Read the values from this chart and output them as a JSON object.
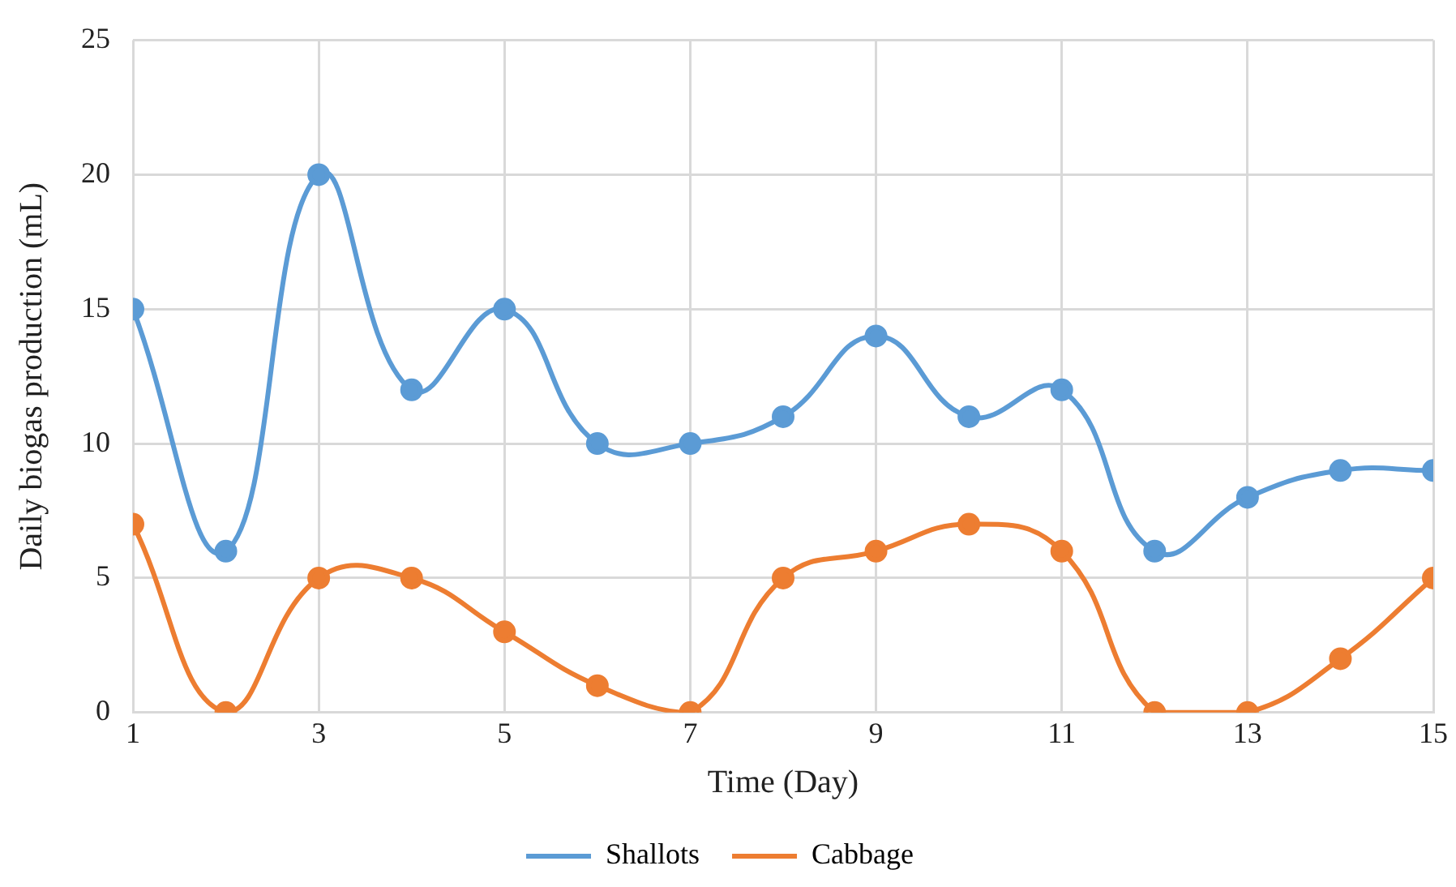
{
  "chart_data": {
    "type": "line",
    "xlabel": "Time (Day)",
    "ylabel": "Daily biogas production (mL)",
    "x": [
      1,
      2,
      3,
      4,
      5,
      6,
      7,
      8,
      9,
      10,
      11,
      12,
      13,
      14,
      15
    ],
    "series": [
      {
        "name": "Shallots",
        "color": "#5b9bd5",
        "values": [
          15,
          6,
          20,
          12,
          15,
          10,
          10,
          11,
          14,
          11,
          12,
          6,
          8,
          9,
          9
        ]
      },
      {
        "name": "Cabbage",
        "color": "#ed7d31",
        "values": [
          7,
          0,
          5,
          5,
          3,
          1,
          0,
          5,
          6,
          7,
          6,
          0,
          0,
          2,
          5
        ]
      }
    ],
    "xlim": [
      1,
      15
    ],
    "xticks": [
      1,
      3,
      5,
      7,
      9,
      11,
      13,
      15
    ],
    "ylim": [
      0,
      25
    ],
    "yticks": [
      0,
      5,
      10,
      15,
      20,
      25
    ],
    "grid": true,
    "legend": "bottom",
    "marker": "circle",
    "line_style": "solid"
  }
}
